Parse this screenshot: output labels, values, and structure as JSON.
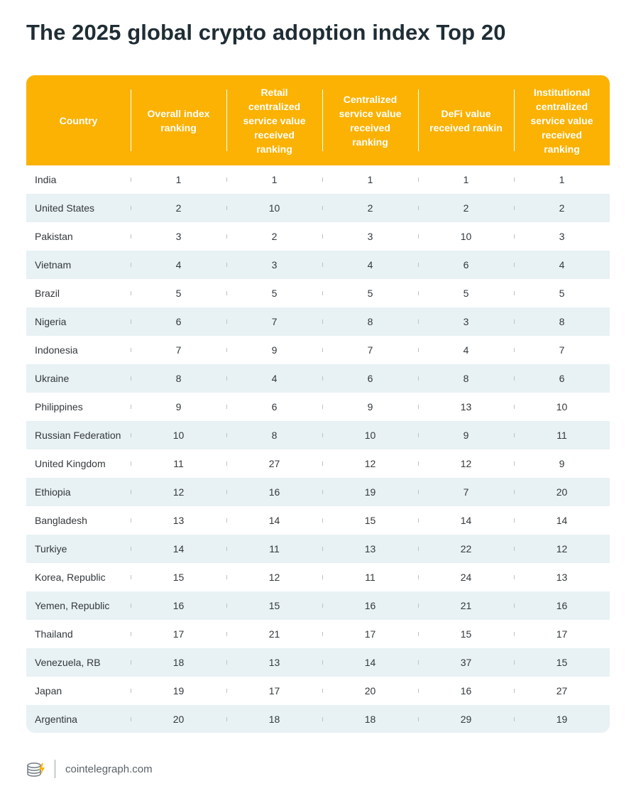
{
  "chart_data": {
    "type": "table",
    "title": "The 2025 global crypto adoption index Top 20",
    "columns": [
      "Country",
      "Overall index ranking",
      "Retail centralized service value received ranking",
      "Centralized service value received ranking",
      "DeFi value received rankin",
      "Institutional centralized service value received ranking"
    ],
    "rows": [
      [
        "India",
        "1",
        "1",
        "1",
        "1",
        "1"
      ],
      [
        "United States",
        "2",
        "10",
        "2",
        "2",
        "2"
      ],
      [
        "Pakistan",
        "3",
        "2",
        "3",
        "10",
        "3"
      ],
      [
        "Vietnam",
        "4",
        "3",
        "4",
        "6",
        "4"
      ],
      [
        "Brazil",
        "5",
        "5",
        "5",
        "5",
        "5"
      ],
      [
        "Nigeria",
        "6",
        "7",
        "8",
        "3",
        "8"
      ],
      [
        "Indonesia",
        "7",
        "9",
        "7",
        "4",
        "7"
      ],
      [
        "Ukraine",
        "8",
        "4",
        "6",
        "8",
        "6"
      ],
      [
        "Philippines",
        "9",
        "6",
        "9",
        "13",
        "10"
      ],
      [
        "Russian Federation",
        "10",
        "8",
        "10",
        "9",
        "11"
      ],
      [
        "United Kingdom",
        "11",
        "27",
        "12",
        "12",
        "9"
      ],
      [
        "Ethiopia",
        "12",
        "16",
        "19",
        "7",
        "20"
      ],
      [
        "Bangladesh",
        "13",
        "14",
        "15",
        "14",
        "14"
      ],
      [
        "Turkiye",
        "14",
        "11",
        "13",
        "22",
        "12"
      ],
      [
        "Korea, Republic",
        "15",
        "12",
        "11",
        "24",
        "13"
      ],
      [
        "Yemen, Republic",
        "16",
        "15",
        "16",
        "21",
        "16"
      ],
      [
        "Thailand",
        "17",
        "21",
        "17",
        "15",
        "17"
      ],
      [
        "Venezuela, RB",
        "18",
        "13",
        "14",
        "37",
        "15"
      ],
      [
        "Japan",
        "19",
        "17",
        "20",
        "16",
        "27"
      ],
      [
        "Argentina",
        "20",
        "18",
        "18",
        "29",
        "19"
      ]
    ]
  },
  "colors": {
    "header_bg": "#fbb203",
    "header_text": "#ffffff",
    "stripe_bg": "#e8f1f4",
    "title_text": "#1f2d35"
  },
  "footer": {
    "logo_icon": "cointelegraph-logo-icon",
    "site": "cointelegraph.com"
  }
}
